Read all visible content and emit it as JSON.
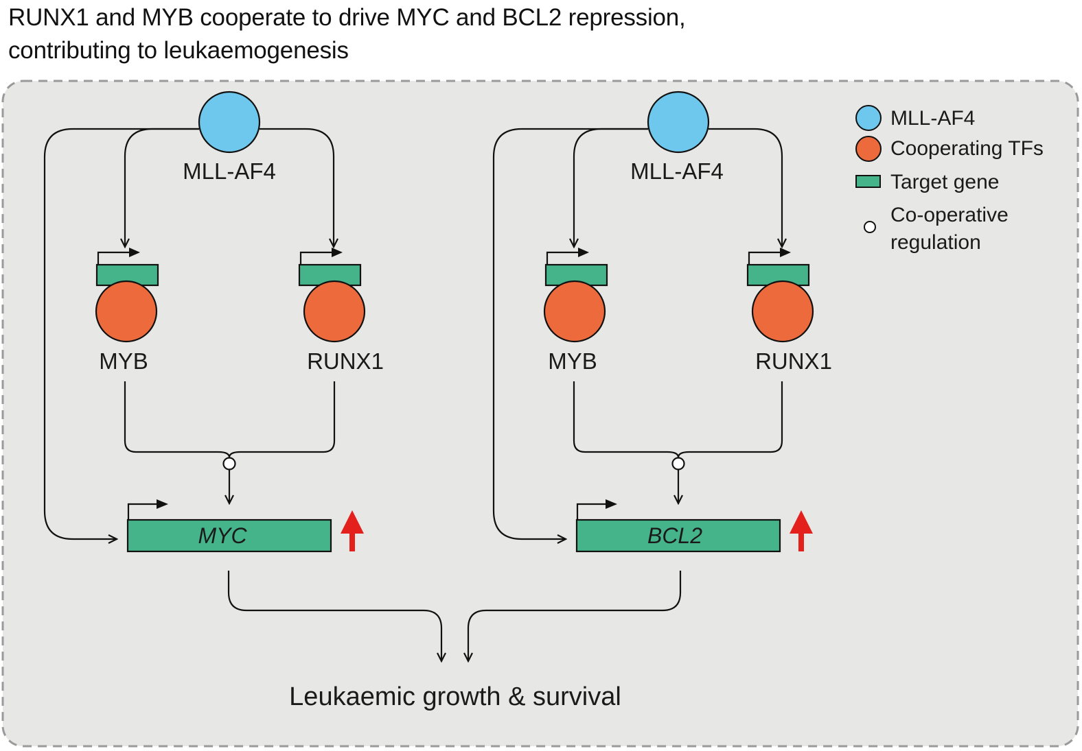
{
  "title": {
    "line1": "RUNX1 and MYB cooperate to drive MYC and BCL2 repression,",
    "line2": "contributing to leukaemogenesis"
  },
  "colors": {
    "panel_bg": "#e7e7e6",
    "panel_border": "#9a9a9a",
    "mll_af4": "#6ec7ec",
    "cooperating_tf": "#ec6a3c",
    "target_gene": "#46b48a",
    "up_arrow": "#e3201b"
  },
  "left_module": {
    "source_label": "MLL-AF4",
    "tf1_label": "MYB",
    "tf2_label": "RUNX1",
    "target_label": "MYC"
  },
  "right_module": {
    "source_label": "MLL-AF4",
    "tf1_label": "MYB",
    "tf2_label": "RUNX1",
    "target_label": "BCL2"
  },
  "outcome_label": "Leukaemic growth & survival",
  "legend": {
    "mll_af4": "MLL-AF4",
    "cooperating_tfs": "Cooperating TFs",
    "target_gene": "Target gene",
    "cooperative_line1": "Co-operative",
    "cooperative_line2": "regulation"
  }
}
